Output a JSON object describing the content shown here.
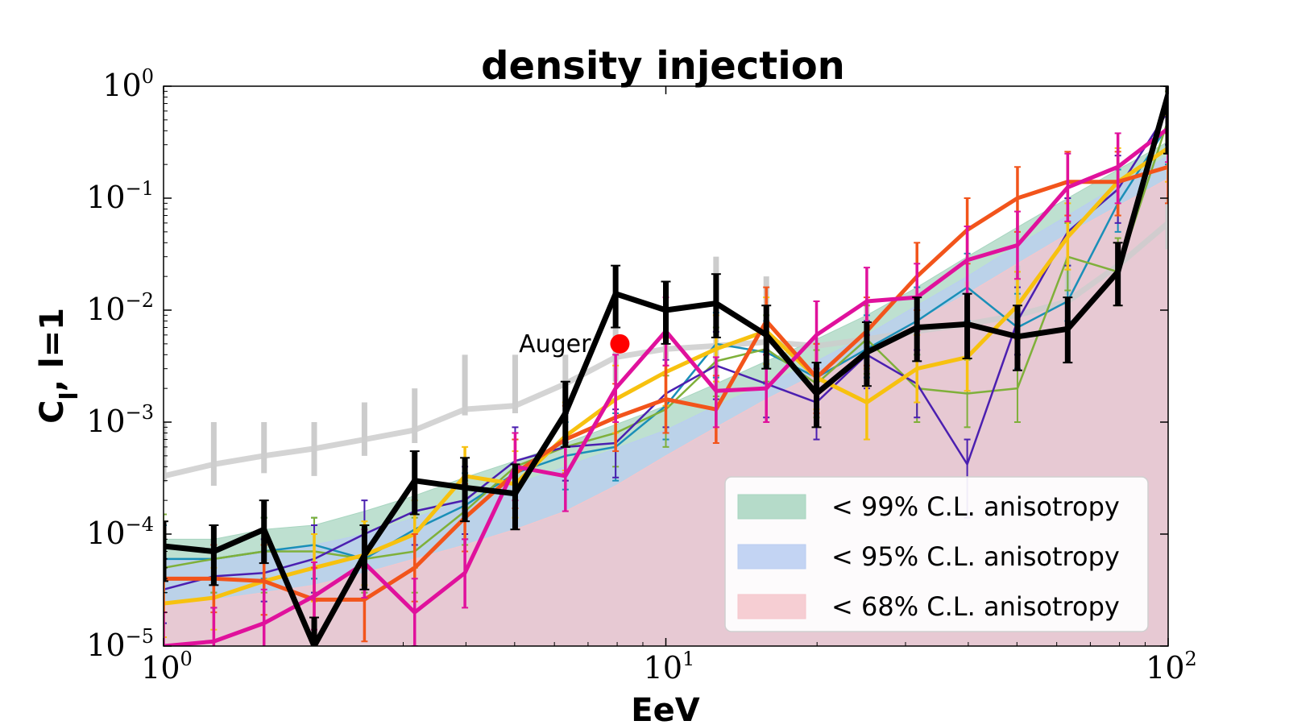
{
  "chart_data": {
    "type": "line",
    "title": "density injection",
    "xlabel": "EeV",
    "ylabel": "C_l, l=1",
    "ylabel_main": "C",
    "ylabel_sub": "l",
    "ylabel_rest": ", l=1",
    "xscale": "log",
    "yscale": "log",
    "xlim": [
      1,
      100
    ],
    "ylim": [
      1e-05,
      1
    ],
    "x_ticks": [
      {
        "value": 1,
        "base": "10",
        "exp": "0"
      },
      {
        "value": 10,
        "base": "10",
        "exp": "1"
      },
      {
        "value": 100,
        "base": "10",
        "exp": "2"
      }
    ],
    "y_ticks": [
      {
        "value": 1,
        "base": "10",
        "exp": "0"
      },
      {
        "value": 0.1,
        "base": "10",
        "exp": "−1"
      },
      {
        "value": 0.01,
        "base": "10",
        "exp": "−2"
      },
      {
        "value": 0.001,
        "base": "10",
        "exp": "−3"
      },
      {
        "value": 0.0001,
        "base": "10",
        "exp": "−4"
      },
      {
        "value": 1e-05,
        "base": "10",
        "exp": "−5"
      }
    ],
    "x": [
      1.0,
      1.259,
      1.585,
      1.995,
      2.512,
      3.162,
      3.981,
      5.012,
      6.31,
      7.943,
      10.0,
      12.59,
      15.85,
      19.95,
      25.12,
      31.62,
      39.81,
      50.12,
      63.1,
      79.43,
      100.0
    ],
    "bands": [
      {
        "label": "< 99% C.L. anisotropy",
        "color": "#a8d5c0",
        "upper": [
          9e-05,
          9e-05,
          0.00011,
          0.00012,
          0.00016,
          0.00022,
          0.00032,
          0.00045,
          0.00065,
          0.00095,
          0.0014,
          0.0022,
          0.0035,
          0.0055,
          0.009,
          0.016,
          0.03,
          0.055,
          0.1,
          0.18,
          0.32
        ]
      },
      {
        "label": "< 95% C.L. anisotropy",
        "color": "#b9cdf1",
        "upper": [
          6e-05,
          6e-05,
          7e-05,
          8e-05,
          0.0001,
          0.00014,
          0.0002,
          0.00028,
          0.0004,
          0.00058,
          0.00085,
          0.0014,
          0.0022,
          0.0035,
          0.006,
          0.011,
          0.02,
          0.038,
          0.07,
          0.13,
          0.24
        ]
      },
      {
        "label": "< 68% C.L. anisotropy",
        "color": "#f5c6cb",
        "upper": [
          2.5e-05,
          2.6e-05,
          3e-05,
          3.5e-05,
          4.5e-05,
          6e-05,
          8e-05,
          0.00011,
          0.00016,
          0.00027,
          0.0005,
          0.0009,
          0.0016,
          0.0027,
          0.0045,
          0.008,
          0.014,
          0.026,
          0.048,
          0.085,
          0.15
        ]
      }
    ],
    "series": [
      {
        "name": "gray",
        "color": "#cccccc",
        "width": 7,
        "values": [
          0.00033,
          0.00042,
          0.0005,
          0.00058,
          0.0007,
          0.00085,
          0.0013,
          0.0014,
          0.0022,
          0.0038,
          0.0045,
          0.0048,
          0.0052,
          0.0048,
          0.0055,
          0.0065,
          0.0075,
          0.009,
          0.012,
          0.025,
          0.06
        ],
        "err_low": [
          4e-05,
          0.00015,
          0.00015,
          0.00025,
          0.0002,
          0.0002,
          0.00015,
          0.0002,
          0.0012,
          0.0015,
          0.0008,
          0.003,
          0.001,
          0.0005,
          0.0012,
          0.002,
          0.003,
          0.004,
          0.006,
          0.01,
          0.025
        ],
        "err_high": [
          0.001,
          0.001,
          0.001,
          0.001,
          0.0015,
          0.002,
          0.004,
          0.004,
          0.004,
          0.007,
          0.01,
          0.03,
          0.02,
          0.0035,
          0.012,
          0.015,
          0.018,
          0.025,
          0.03,
          0.04,
          0.1
        ]
      },
      {
        "name": "teal",
        "color": "#1a8fb8",
        "width": 2.5,
        "values": [
          6e-05,
          6e-05,
          7e-05,
          8e-05,
          6e-05,
          0.00011,
          0.00018,
          0.00035,
          0.0005,
          0.0006,
          0.0014,
          0.005,
          0.0042,
          0.0025,
          0.0045,
          0.008,
          0.016,
          0.007,
          0.012,
          0.09,
          0.45
        ],
        "err_low": [
          3e-05,
          3e-05,
          3e-05,
          4e-05,
          3e-05,
          6e-05,
          9e-05,
          0.00018,
          0.00025,
          0.0003,
          0.0007,
          0.0025,
          0.002,
          0.0013,
          0.002,
          0.004,
          0.008,
          0.004,
          0.004,
          0.04,
          0.25
        ],
        "err_high": [
          0.00012,
          0.00012,
          0.00014,
          0.00014,
          0.00012,
          0.0002,
          0.00035,
          0.0007,
          0.001,
          0.0012,
          0.0028,
          0.0095,
          0.008,
          0.005,
          0.009,
          0.016,
          0.032,
          0.014,
          0.025,
          0.18,
          0.8
        ]
      },
      {
        "name": "olive",
        "color": "#7fb03a",
        "width": 2.5,
        "values": [
          5e-05,
          6e-05,
          7e-05,
          7e-05,
          6e-05,
          7e-05,
          0.00016,
          0.0004,
          0.0006,
          0.0008,
          0.0013,
          0.0035,
          0.0045,
          0.0022,
          0.0055,
          0.002,
          0.0018,
          0.002,
          0.03,
          0.022,
          0.5
        ],
        "err_low": [
          3e-05,
          3e-05,
          4e-05,
          4e-05,
          3e-05,
          4e-05,
          8e-05,
          0.0002,
          0.0003,
          0.0004,
          0.0007,
          0.0018,
          0.0022,
          0.0011,
          0.0028,
          0.001,
          0.0009,
          0.001,
          0.015,
          0.011,
          0.25
        ],
        "err_high": [
          0.00015,
          0.00012,
          0.00014,
          0.00014,
          0.00012,
          0.00014,
          0.0003,
          0.0008,
          0.0012,
          0.0016,
          0.0026,
          0.007,
          0.009,
          0.0044,
          0.011,
          0.004,
          0.0036,
          0.004,
          0.06,
          0.044,
          0.9
        ]
      },
      {
        "name": "purple",
        "color": "#4b1fb0",
        "width": 2.5,
        "values": [
          3.2e-05,
          4.2e-05,
          4.5e-05,
          6e-05,
          0.0001,
          0.00016,
          0.0002,
          0.00045,
          0.0006,
          0.00065,
          0.0018,
          0.0032,
          0.0022,
          0.0015,
          0.004,
          0.0022,
          0.00042,
          0.008,
          0.05,
          0.12,
          0.6
        ],
        "err_low": [
          1.6e-05,
          2e-05,
          2e-05,
          3e-05,
          5e-05,
          8e-05,
          0.0001,
          0.00022,
          0.0003,
          0.00033,
          0.0009,
          0.0016,
          0.0011,
          0.0008,
          0.002,
          0.0011,
          0.00028,
          0.004,
          0.025,
          0.06,
          0.3
        ],
        "err_high": [
          6e-05,
          8e-05,
          9e-05,
          0.00012,
          0.0002,
          0.0003,
          0.0004,
          0.0009,
          0.0012,
          0.0013,
          0.0036,
          0.0064,
          0.0044,
          0.003,
          0.008,
          0.0044,
          0.0007,
          0.016,
          0.1,
          0.24,
          1.0
        ]
      },
      {
        "name": "yellow",
        "color": "#f7c10f",
        "width": 5,
        "values": [
          2.4e-05,
          2.7e-05,
          3.8e-05,
          5e-05,
          6.5e-05,
          0.0001,
          0.00033,
          0.00028,
          0.00075,
          0.0016,
          0.0028,
          0.0045,
          0.0065,
          0.0025,
          0.0015,
          0.003,
          0.0038,
          0.011,
          0.045,
          0.14,
          0.28
        ],
        "err_low": [
          1.2e-05,
          1.3e-05,
          1.9e-05,
          2.5e-05,
          3e-05,
          5e-05,
          0.00016,
          0.00014,
          0.00038,
          0.0008,
          0.0014,
          0.0022,
          0.0032,
          0.0012,
          0.0008,
          0.0015,
          0.0019,
          0.0055,
          0.022,
          0.07,
          0.14
        ],
        "err_high": [
          5e-05,
          5e-05,
          8e-05,
          0.0001,
          0.00013,
          0.0002,
          0.0006,
          0.00055,
          0.0015,
          0.0032,
          0.0056,
          0.009,
          0.013,
          0.005,
          0.003,
          0.006,
          0.0076,
          0.022,
          0.09,
          0.28,
          0.55
        ]
      },
      {
        "name": "orange",
        "color": "#f2541b",
        "width": 5,
        "values": [
          4e-05,
          4e-05,
          3.8e-05,
          2.6e-05,
          2.6e-05,
          5e-05,
          0.00014,
          0.00035,
          0.0007,
          0.0011,
          0.0016,
          0.0013,
          0.008,
          0.0025,
          0.0065,
          0.02,
          0.052,
          0.1,
          0.14,
          0.14,
          0.19
        ],
        "err_low": [
          2e-05,
          2e-05,
          1.9e-05,
          1.5e-05,
          1.5e-05,
          2.5e-05,
          7e-05,
          0.00018,
          0.00035,
          0.00055,
          0.0008,
          0.00065,
          0.004,
          0.0013,
          0.0033,
          0.01,
          0.026,
          0.05,
          0.07,
          0.07,
          0.1
        ],
        "err_high": [
          8e-05,
          8e-05,
          8e-05,
          5e-05,
          5e-05,
          0.0001,
          0.00028,
          0.0007,
          0.0014,
          0.0022,
          0.0032,
          0.0026,
          0.016,
          0.005,
          0.013,
          0.04,
          0.1,
          0.19,
          0.26,
          0.26,
          0.38
        ]
      },
      {
        "name": "magenta",
        "color": "#e0119c",
        "width": 5,
        "values": [
          1e-05,
          1.1e-05,
          1.6e-05,
          2.8e-05,
          5.5e-05,
          2e-05,
          4.5e-05,
          0.0004,
          0.00033,
          0.002,
          0.0065,
          0.0019,
          0.002,
          0.006,
          0.012,
          0.013,
          0.028,
          0.038,
          0.125,
          0.19,
          0.42
        ],
        "err_low": [
          5e-06,
          6e-06,
          8e-06,
          1.4e-05,
          2.8e-05,
          1e-05,
          2.3e-05,
          0.0002,
          0.00017,
          0.001,
          0.0033,
          0.001,
          0.001,
          0.003,
          0.006,
          0.0065,
          0.014,
          0.019,
          0.063,
          0.1,
          0.21
        ],
        "err_high": [
          2e-05,
          2.2e-05,
          3.2e-05,
          5.6e-05,
          0.00011,
          4e-05,
          9e-05,
          0.0008,
          0.00066,
          0.004,
          0.013,
          0.0038,
          0.004,
          0.012,
          0.024,
          0.026,
          0.056,
          0.076,
          0.25,
          0.38,
          0.8
        ]
      },
      {
        "name": "black",
        "color": "#000000",
        "width": 7,
        "values": [
          7.8e-05,
          7e-05,
          0.00011,
          1e-05,
          6.5e-05,
          0.0003,
          0.00026,
          0.00023,
          0.0012,
          0.014,
          0.01,
          0.0115,
          0.006,
          0.0018,
          0.0042,
          0.007,
          0.0075,
          0.0058,
          0.0068,
          0.022,
          0.85
        ],
        "err_low": [
          4e-05,
          3.5e-05,
          5.5e-05,
          5e-06,
          3.3e-05,
          0.00015,
          0.00013,
          0.00012,
          0.0006,
          0.007,
          0.005,
          0.0058,
          0.003,
          0.0009,
          0.0021,
          0.0035,
          0.0038,
          0.0029,
          0.0034,
          0.011,
          0.6
        ],
        "err_high": [
          0.00013,
          0.00012,
          0.0002,
          1.8e-05,
          0.00012,
          0.00055,
          0.00048,
          0.00042,
          0.0023,
          0.025,
          0.018,
          0.021,
          0.011,
          0.0034,
          0.0078,
          0.013,
          0.014,
          0.011,
          0.013,
          0.04,
          1.0
        ]
      }
    ],
    "annotation": {
      "label": "Auger",
      "x": 8.1,
      "y": 0.005,
      "color": "#ff0000"
    },
    "legend": {
      "placement": "lower-right"
    }
  }
}
